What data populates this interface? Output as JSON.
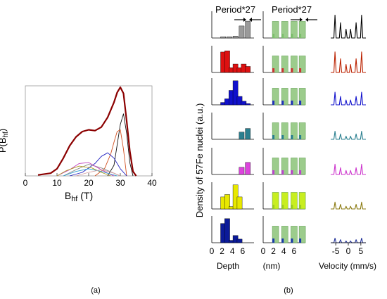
{
  "panel_a": {
    "caption": "(a)",
    "ylabel": "P(B_hf)",
    "ylabel_main": "P(B",
    "ylabel_sub": "hf",
    "ylabel_close": ")",
    "xlabel_main": "B",
    "xlabel_sub": "hf",
    "xlabel_unit": " (T)"
  },
  "panel_b": {
    "caption": "(b)",
    "ylabel": "Density of 57Fe nuclei (a.u.)",
    "header_left": "Period*27",
    "header_right": "Period*27",
    "depth_label": "Depth",
    "nm_label": "(nm)",
    "velocity_label": "Velocity (mm/s)"
  },
  "chart_data": [
    {
      "type": "line",
      "xlabel": "Bhf (T)",
      "ylabel": "P(Bhf)",
      "xlim": [
        0,
        40
      ],
      "xticks": [
        0,
        10,
        20,
        30,
        40
      ],
      "grid": false,
      "series": [
        {
          "color": "#8b0000",
          "x": [
            4,
            8,
            10,
            12,
            14,
            16,
            18,
            20,
            22,
            24,
            26,
            28,
            29,
            30,
            31,
            32,
            33,
            34,
            35
          ],
          "y": [
            0.01,
            0.03,
            0.08,
            0.2,
            0.34,
            0.44,
            0.5,
            0.52,
            0.51,
            0.55,
            0.66,
            0.83,
            0.94,
            1.0,
            0.93,
            0.62,
            0.28,
            0.05,
            0
          ]
        },
        {
          "color": "#111111",
          "x": [
            26,
            28,
            29,
            30,
            31,
            32,
            33,
            34
          ],
          "y": [
            0,
            0.12,
            0.35,
            0.58,
            0.7,
            0.48,
            0.15,
            0
          ]
        },
        {
          "color": "#d05020",
          "x": [
            22,
            25,
            27,
            28,
            29,
            30,
            31,
            32
          ],
          "y": [
            0,
            0.08,
            0.25,
            0.38,
            0.5,
            0.52,
            0.3,
            0
          ]
        },
        {
          "color": "#2020c0",
          "x": [
            14,
            18,
            22,
            24,
            26,
            28,
            30,
            32
          ],
          "y": [
            0,
            0.04,
            0.14,
            0.22,
            0.26,
            0.2,
            0.08,
            0
          ]
        },
        {
          "color": "#8a8a8a",
          "x": [
            12,
            16,
            20,
            24,
            28,
            30
          ],
          "y": [
            0,
            0.07,
            0.13,
            0.09,
            0.03,
            0
          ]
        },
        {
          "color": "#c040c0",
          "x": [
            10,
            14,
            17,
            20,
            23,
            26,
            28
          ],
          "y": [
            0,
            0.07,
            0.14,
            0.15,
            0.09,
            0.03,
            0
          ]
        },
        {
          "color": "#b09a20",
          "x": [
            10,
            13,
            17,
            21,
            24,
            27
          ],
          "y": [
            0,
            0.06,
            0.11,
            0.09,
            0.04,
            0
          ]
        },
        {
          "color": "#30a0d0",
          "x": [
            12,
            16,
            20,
            24,
            27,
            29
          ],
          "y": [
            0,
            0.05,
            0.08,
            0.05,
            0.02,
            0
          ]
        },
        {
          "color": "#d6a0a0",
          "x": [
            16,
            20,
            24,
            28,
            30
          ],
          "y": [
            0,
            0.04,
            0.07,
            0.03,
            0
          ]
        }
      ]
    },
    {
      "type": "bar",
      "title": "Period*27",
      "xlabel": "Depth (nm)",
      "xticks": [
        0,
        2,
        4,
        6
      ],
      "rows": [
        {
          "color": "#9a9a9a",
          "bars": [
            [
              2.2,
              0.05
            ],
            [
              3.4,
              0.05
            ],
            [
              4.6,
              0.08
            ],
            [
              5.8,
              0.5
            ],
            [
              7.0,
              0.7
            ]
          ]
        },
        {
          "color": "#dd1111",
          "bars": [
            [
              2.2,
              0.85
            ],
            [
              3.0,
              0.9
            ],
            [
              3.8,
              0.2
            ],
            [
              4.6,
              0.35
            ],
            [
              5.4,
              0.2
            ],
            [
              6.2,
              0.35
            ],
            [
              7.0,
              0.25
            ]
          ]
        },
        {
          "color": "#1111cc",
          "bars": [
            [
              2.2,
              0.1
            ],
            [
              3.0,
              0.25
            ],
            [
              3.8,
              0.6
            ],
            [
              4.6,
              1.0
            ],
            [
              5.4,
              0.35
            ],
            [
              6.2,
              0.15
            ],
            [
              7.0,
              0.05
            ]
          ]
        },
        {
          "color": "#2a7f8f",
          "bars": [
            [
              5.8,
              0.3
            ],
            [
              7.0,
              0.45
            ]
          ]
        },
        {
          "color": "#dd44dd",
          "bars": [
            [
              5.8,
              0.3
            ],
            [
              7.0,
              0.5
            ]
          ]
        },
        {
          "color": "#e8e800",
          "bars": [
            [
              2.2,
              0.5
            ],
            [
              3.0,
              0.6
            ],
            [
              3.8,
              0.1
            ],
            [
              4.6,
              1.0
            ],
            [
              5.4,
              0.5
            ]
          ]
        },
        {
          "color": "#0b1a99",
          "bars": [
            [
              2.2,
              0.8
            ],
            [
              3.0,
              1.0
            ],
            [
              3.8,
              0.1
            ],
            [
              4.6,
              0.3
            ],
            [
              5.4,
              0.15
            ]
          ]
        }
      ]
    },
    {
      "type": "bar",
      "title": "Period*27",
      "xlabel": "Depth (nm)",
      "xticks": [
        0,
        2,
        4,
        6
      ],
      "rows": [
        {
          "fill": "#9ccc8c",
          "mark": "#7cbf6c"
        },
        {
          "fill": "#9ccc8c",
          "mark": "#cc3333"
        },
        {
          "fill": "#9ccc8c",
          "mark": "#2233bb"
        },
        {
          "fill": "#9ccc8c",
          "mark": "#2a7f8f"
        },
        {
          "fill": "#9ccc8c",
          "mark": "#bb44cc"
        },
        {
          "fill": "#c8ee20",
          "mark": "#9acc20"
        },
        {
          "fill": "#9ccc8c",
          "mark": "#1a3aaa"
        }
      ]
    },
    {
      "type": "line",
      "xlabel": "Velocity (mm/s)",
      "xticks": [
        -5,
        0,
        5
      ],
      "rows": [
        {
          "color": "#000000",
          "amp": 1.0
        },
        {
          "color": "#bb2200",
          "amp": 0.9
        },
        {
          "color": "#1111cc",
          "amp": 0.55
        },
        {
          "color": "#2a7f8f",
          "amp": 0.35
        },
        {
          "color": "#cc33cc",
          "amp": 0.45
        },
        {
          "color": "#8a7a10",
          "amp": 0.3
        },
        {
          "color": "#223399",
          "amp": 0.2
        }
      ],
      "line_x": [
        -7,
        -5.3,
        -3.1,
        -0.9,
        0.9,
        3.1,
        5.3,
        7
      ],
      "line_peaks": [
        -5.3,
        -3.1,
        -0.9,
        0.9,
        3.1,
        5.3
      ],
      "line_rel": [
        0.9,
        0.6,
        0.35,
        0.35,
        0.6,
        0.9
      ]
    }
  ]
}
